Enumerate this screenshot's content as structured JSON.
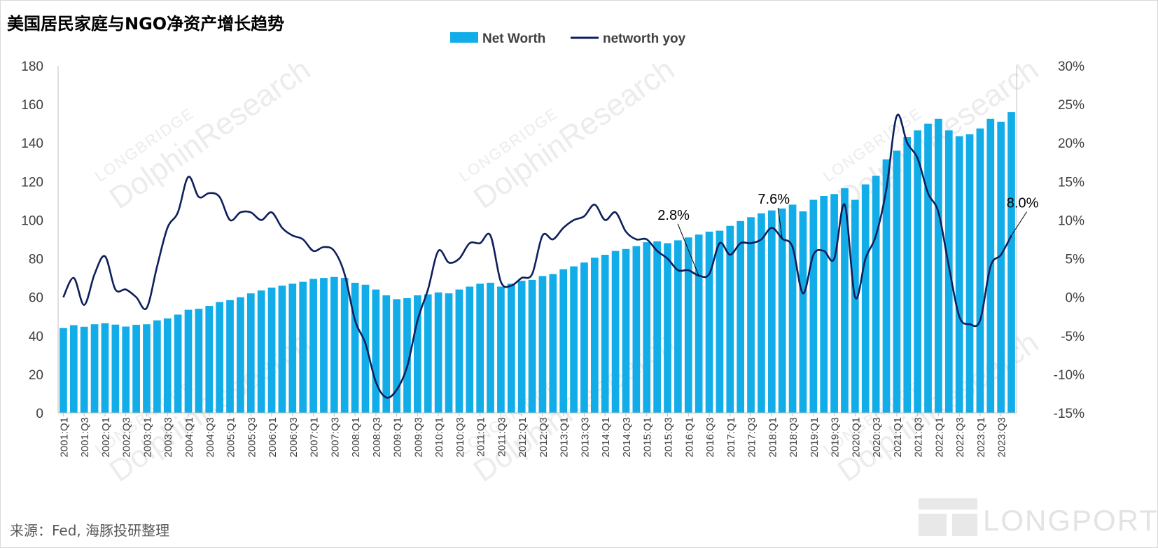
{
  "title": "美国居民家庭与NGO净资产增长趋势",
  "source": "来源：Fed, 海豚投研整理",
  "watermark": {
    "main": "DolphinResearch",
    "sub": "LONGBRIDGE",
    "brand": "LONGPORT"
  },
  "colors": {
    "bar": "#12ADE8",
    "line": "#0E1F5B"
  },
  "chart_data": {
    "type": "bar",
    "title": "美国居民家庭与NGO净资产增长趋势",
    "legend_position": "top-center",
    "grid": false,
    "series": [
      {
        "name": "Net Worth",
        "type": "bar",
        "axis": "left",
        "values": [
          44.0,
          45.5,
          44.7,
          46.0,
          46.5,
          45.8,
          44.8,
          45.7,
          46.0,
          48.0,
          49.0,
          51.0,
          53.5,
          54.0,
          55.5,
          57.5,
          58.5,
          60.0,
          62.0,
          63.5,
          65.0,
          66.0,
          67.0,
          68.0,
          69.5,
          70.0,
          70.5,
          70.0,
          67.5,
          66.5,
          64.0,
          61.0,
          59.0,
          59.5,
          61.0,
          61.5,
          62.5,
          62.0,
          64.0,
          65.5,
          67.0,
          67.5,
          65.5,
          67.0,
          68.5,
          69.0,
          71.0,
          72.0,
          74.5,
          76.0,
          78.0,
          80.5,
          82.0,
          84.0,
          85.0,
          86.5,
          88.5,
          89.0,
          88.0,
          89.5,
          91.0,
          92.5,
          94.0,
          94.5,
          97.0,
          99.5,
          101.5,
          103.5,
          105.0,
          106.0,
          108.0,
          104.5,
          110.5,
          112.5,
          113.5,
          116.5,
          110.5,
          118.5,
          123.0,
          131.5,
          136.0,
          143.0,
          146.5,
          150.0,
          152.5,
          146.5,
          143.5,
          144.5,
          147.5,
          152.5,
          151.0,
          156.0
        ]
      },
      {
        "name": "networth yoy",
        "type": "line",
        "axis": "right",
        "values": [
          0.0,
          2.5,
          -1.0,
          3.0,
          5.3,
          1.0,
          1.0,
          0.0,
          -1.4,
          4.0,
          9.0,
          11.0,
          15.6,
          13.0,
          13.5,
          13.0,
          10.0,
          11.0,
          11.0,
          10.0,
          11.0,
          9.0,
          8.0,
          7.5,
          6.0,
          6.5,
          6.0,
          3.0,
          -3.0,
          -6.0,
          -11.0,
          -13.0,
          -12.0,
          -9.0,
          -3.0,
          1.0,
          6.0,
          4.5,
          5.0,
          7.0,
          7.0,
          8.0,
          2.0,
          1.5,
          2.5,
          3.0,
          8.0,
          7.5,
          9.0,
          10.0,
          10.5,
          12.0,
          10.0,
          11.0,
          8.5,
          7.5,
          7.5,
          6.0,
          5.0,
          3.5,
          3.5,
          2.8,
          3.0,
          7.0,
          5.5,
          7.0,
          7.0,
          7.5,
          9.0,
          7.6,
          6.5,
          0.5,
          5.5,
          6.0,
          5.0,
          12.0,
          0.0,
          5.0,
          8.0,
          14.0,
          23.5,
          20.0,
          18.0,
          13.5,
          11.0,
          4.0,
          -2.5,
          -3.5,
          -3.0,
          4.0,
          5.5,
          8.0
        ]
      }
    ],
    "x": [
      "2001:Q1",
      "2001:Q2",
      "2001:Q3",
      "2001:Q4",
      "2002:Q1",
      "2002:Q2",
      "2002:Q3",
      "2002:Q4",
      "2003:Q1",
      "2003:Q2",
      "2003:Q3",
      "2003:Q4",
      "2004:Q1",
      "2004:Q2",
      "2004:Q3",
      "2004:Q4",
      "2005:Q1",
      "2005:Q2",
      "2005:Q3",
      "2005:Q4",
      "2006:Q1",
      "2006:Q2",
      "2006:Q3",
      "2006:Q4",
      "2007:Q1",
      "2007:Q2",
      "2007:Q3",
      "2007:Q4",
      "2008:Q1",
      "2008:Q2",
      "2008:Q3",
      "2008:Q4",
      "2009:Q1",
      "2009:Q2",
      "2009:Q3",
      "2009:Q4",
      "2010:Q1",
      "2010:Q2",
      "2010:Q3",
      "2010:Q4",
      "2011:Q1",
      "2011:Q2",
      "2011:Q3",
      "2011:Q4",
      "2012:Q1",
      "2012:Q2",
      "2012:Q3",
      "2012:Q4",
      "2013:Q1",
      "2013:Q2",
      "2013:Q3",
      "2013:Q4",
      "2014:Q1",
      "2014:Q2",
      "2014:Q3",
      "2014:Q4",
      "2015:Q1",
      "2015:Q2",
      "2015:Q3",
      "2015:Q4",
      "2016:Q1",
      "2016:Q2",
      "2016:Q3",
      "2016:Q4",
      "2017:Q1",
      "2017:Q2",
      "2017:Q3",
      "2017:Q4",
      "2018:Q1",
      "2018:Q2",
      "2018:Q3",
      "2018:Q4",
      "2019:Q1",
      "2019:Q2",
      "2019:Q3",
      "2019:Q4",
      "2020:Q1",
      "2020:Q2",
      "2020:Q3",
      "2020:Q4",
      "2021:Q1",
      "2021:Q2",
      "2021:Q3",
      "2021:Q4",
      "2022:Q1",
      "2022:Q2",
      "2022:Q3",
      "2022:Q4",
      "2023:Q1",
      "2023:Q2",
      "2023:Q3",
      "2023:Q4"
    ],
    "x_tick_labels": [
      "2001:Q1",
      "2001:Q3",
      "2002:Q1",
      "2002:Q3",
      "2003:Q1",
      "2003:Q3",
      "2004:Q1",
      "2004:Q3",
      "2005:Q1",
      "2005:Q3",
      "2006:Q1",
      "2006:Q3",
      "2007:Q1",
      "2007:Q3",
      "2008:Q1",
      "2008:Q3",
      "2009:Q1",
      "2009:Q3",
      "2010:Q1",
      "2010:Q3",
      "2011:Q1",
      "2011:Q3",
      "2012:Q1",
      "2012:Q3",
      "2013:Q1",
      "2013:Q3",
      "2014:Q1",
      "2014:Q3",
      "2015:Q1",
      "2015:Q3",
      "2016:Q1",
      "2016:Q3",
      "2017:Q1",
      "2017:Q3",
      "2018:Q1",
      "2018:Q3",
      "2019:Q1",
      "2019:Q3",
      "2020:Q1",
      "2020:Q3",
      "2021:Q1",
      "2021:Q3",
      "2022:Q1",
      "2022:Q3",
      "2023:Q1",
      "2023:Q3"
    ],
    "y_left": {
      "ylim": [
        0,
        180
      ],
      "ticks": [
        "0",
        "20",
        "40",
        "60",
        "80",
        "100",
        "120",
        "140",
        "160",
        "180"
      ]
    },
    "y_right": {
      "ylim": [
        -15,
        30
      ],
      "ticks": [
        "-15%",
        "-10%",
        "-5%",
        "0%",
        "5%",
        "10%",
        "15%",
        "20%",
        "25%",
        "30%"
      ]
    },
    "annotations": [
      {
        "text": "2.8%",
        "index": 61
      },
      {
        "text": "7.6%",
        "index": 69
      },
      {
        "text": "8.0%",
        "index": 91
      }
    ]
  }
}
